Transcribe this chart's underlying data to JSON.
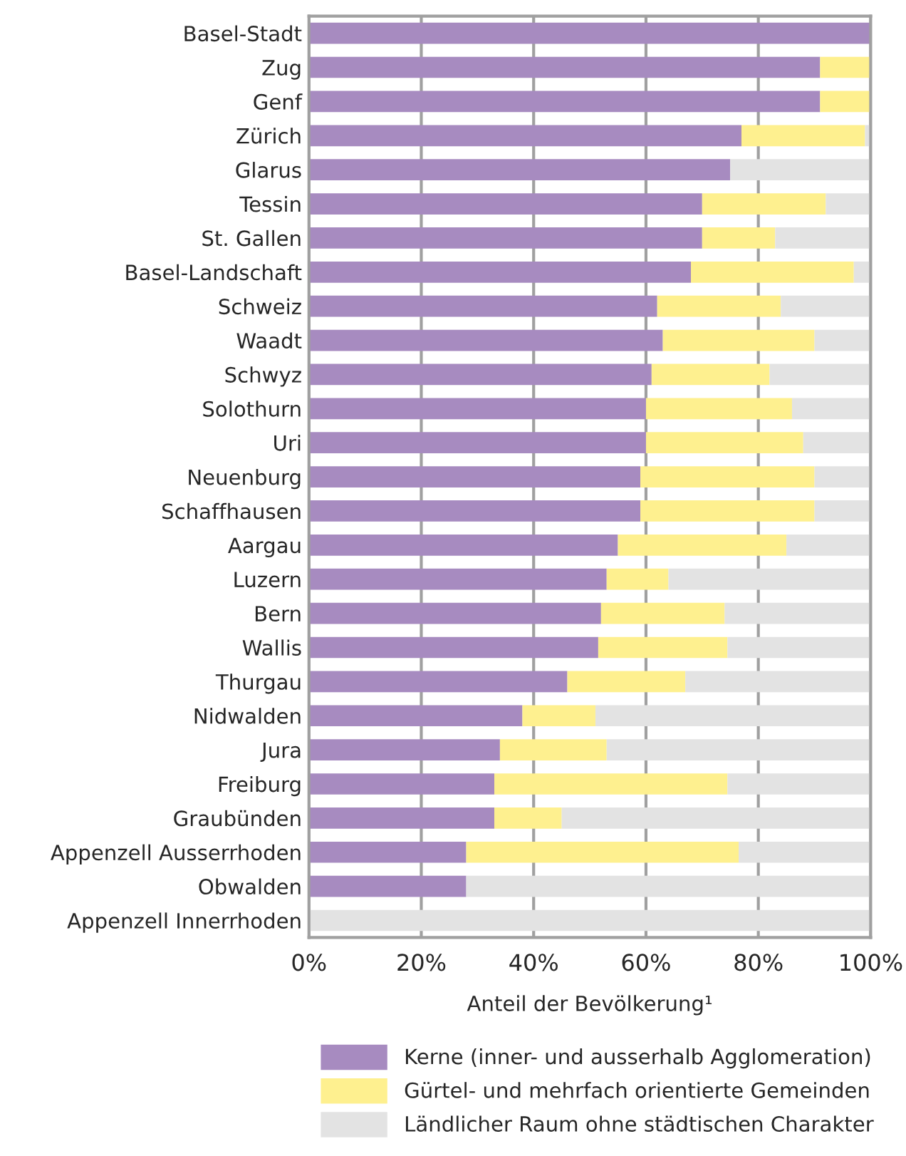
{
  "chart_data": {
    "type": "bar",
    "orientation": "horizontal",
    "stacked": true,
    "xlabel": "Anteil der Bevölkerung¹",
    "categories": [
      "Basel-Stadt",
      "Zug",
      "Genf",
      "Zürich",
      "Glarus",
      "Tessin",
      "St. Gallen",
      "Basel-Landschaft",
      "Schweiz",
      "Waadt",
      "Schwyz",
      "Solothurn",
      "Uri",
      "Neuenburg",
      "Schaffhausen",
      "Aargau",
      "Luzern",
      "Bern",
      "Wallis",
      "Thurgau",
      "Nidwalden",
      "Jura",
      "Freiburg",
      "Graubünden",
      "Appenzell Ausserrhoden",
      "Obwalden",
      "Appenzell Innerrhoden"
    ],
    "series": [
      {
        "name": "Kerne (inner- und ausserhalb Agglomeration)",
        "color": "#a78bc0",
        "values": [
          100,
          91,
          91,
          77,
          75,
          70,
          70,
          68,
          62,
          63,
          61,
          60,
          60,
          59,
          59,
          55,
          53,
          52,
          51.5,
          46,
          38,
          34,
          33,
          33,
          28,
          28,
          0
        ]
      },
      {
        "name": "Gürtel- und mehrfach orientierte Gemeinden",
        "color": "#fef08f",
        "values": [
          0,
          9,
          9,
          22,
          0,
          22,
          13,
          29,
          22,
          27,
          21,
          26,
          28,
          31,
          31,
          30,
          11,
          22,
          23,
          21,
          13,
          19,
          41.5,
          12,
          48.5,
          0,
          0
        ]
      },
      {
        "name": "Ländlicher Raum ohne städtischen Charakter",
        "color": "#e3e3e3",
        "values": [
          0,
          0,
          0,
          1,
          25,
          8,
          17,
          3,
          16,
          10,
          18,
          14,
          12,
          10,
          10,
          15,
          36,
          26,
          25.5,
          33,
          49,
          47,
          25.5,
          55,
          23.5,
          72,
          100
        ]
      }
    ],
    "xlim": [
      0,
      100
    ],
    "xticks": [
      {
        "value": 0,
        "label": "0%"
      },
      {
        "value": 20,
        "label": "20%"
      },
      {
        "value": 40,
        "label": "40%"
      },
      {
        "value": 60,
        "label": "60%"
      },
      {
        "value": 80,
        "label": "80%"
      },
      {
        "value": 100,
        "label": "100%"
      }
    ],
    "grid": "x",
    "legend": "bottom"
  }
}
